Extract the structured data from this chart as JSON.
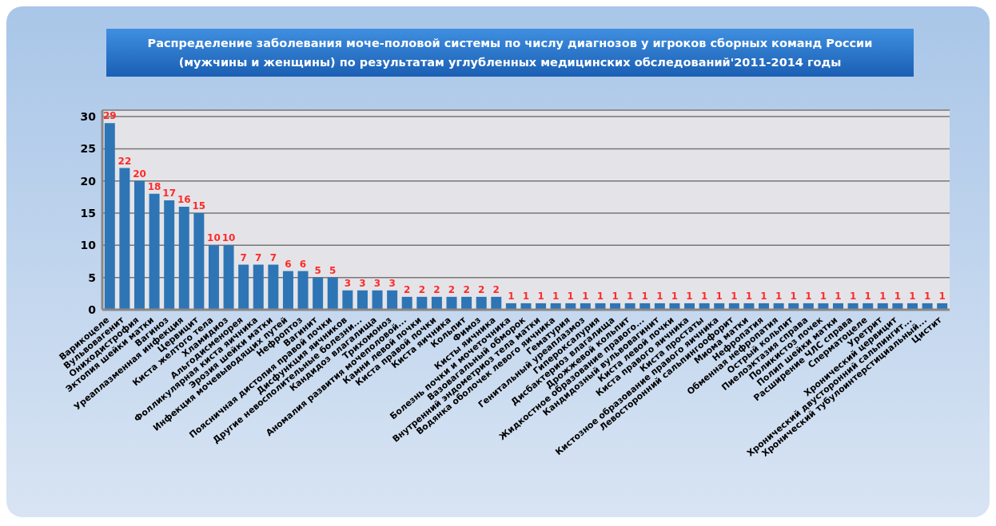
{
  "chart_data": {
    "type": "bar",
    "title": "Распределение заболевания моче-половой системы по числу диагнозов у игроков сборных команд России (мужчины и женщины) по результатам углубленных медицинских обследований'2011-2014 годы",
    "categories": [
      "Варикоцеле",
      "Вульвовагенит",
      "Ониходистрофия",
      "Эктопия шейки матки",
      "Вагиноз",
      "Уреаплазменная инфекция",
      "Цервицит",
      "Киста желтого тела",
      "Хламидиоз",
      "Альгодисменорея",
      "Фолликулярная киста яичника",
      "Эрозия шейки матки",
      "Инфекция мочевыводящих путей",
      "Нефроптоз",
      "Вагинит",
      "Поясничная дистопия правой почки",
      "Дисфункция яичников",
      "Другие невосполительные болезни...",
      "Кандидоз влагалища",
      "Трихомоноз",
      "Аномалия развития мочеполовой...",
      "Камни левой почки",
      "Киста правой почки",
      "Киста яичника",
      "Кольпит",
      "Фимоз",
      "Кисты яичника",
      "Болезнь почки и мочеточника",
      "Вазовагальный обморок",
      "Внутренний эндометриоз тела матки",
      "Водянка оболочек левого яичника",
      "Гематурия",
      "Генитальный уреаплазмоз",
      "Гипероксалурия",
      "Дисбактериоз влагалища",
      "Дрожжевой кольпит",
      "Жидкостное образование правого...",
      "Кандидозный вульвовагинит",
      "Киста левой почки",
      "Киста правого яичника",
      "Киста простаты",
      "Кистозное образование правого яичника",
      "Левосторонний сальпингоофорит",
      "Миома матки",
      "Нефропатия",
      "Обменная нефропатия",
      "Острый кольпит",
      "Пиелоэктазия справа",
      "Поликистоз почек",
      "Полип шейки матки",
      "Расширение ЧЛС справа",
      "Сперматоцеле",
      "Уретрит",
      "Хронический цервицит",
      "Хронический двусторонний сальпингит...",
      "Хронический тубулоинтерстициальный...",
      "Цистит"
    ],
    "values": [
      29,
      22,
      20,
      18,
      17,
      16,
      15,
      10,
      10,
      7,
      7,
      7,
      6,
      6,
      5,
      5,
      3,
      3,
      3,
      3,
      2,
      2,
      2,
      2,
      2,
      2,
      2,
      1,
      1,
      1,
      1,
      1,
      1,
      1,
      1,
      1,
      1,
      1,
      1,
      1,
      1,
      1,
      1,
      1,
      1,
      1,
      1,
      1,
      1,
      1,
      1,
      1,
      1,
      1,
      1,
      1,
      1
    ],
    "color": "#2e75b6",
    "ylim": [
      0,
      31
    ],
    "yticks": [
      0,
      5,
      10,
      15,
      20,
      25,
      30
    ],
    "grid": "y",
    "data_labels": true
  }
}
